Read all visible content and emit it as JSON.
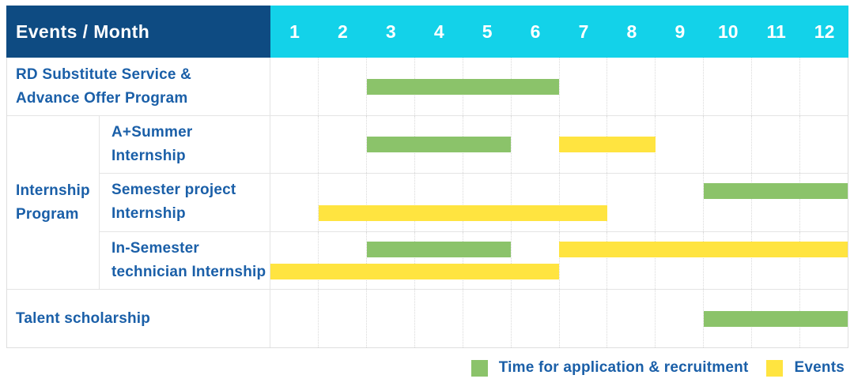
{
  "header": {
    "corner_label": "Events / Month",
    "months": [
      "1",
      "2",
      "3",
      "4",
      "5",
      "6",
      "7",
      "8",
      "9",
      "10",
      "11",
      "12"
    ]
  },
  "colors": {
    "navy": "#0e4b82",
    "cyan": "#13d2e9",
    "green": "#8bc36a",
    "yellow": "#ffe440",
    "text_blue": "#1a5fa8",
    "grid": "#e4e4e4",
    "grid_dotted": "#d9d9d9"
  },
  "group": {
    "id": "internship-program",
    "label_lines": [
      "Internship",
      "Program"
    ],
    "from_row": 1,
    "to_row": 3
  },
  "rows": [
    {
      "id": "rd-substitute",
      "label_lines": [
        "RD Substitute Service &",
        "Advance Offer Program"
      ],
      "in_group": false,
      "lines": [
        [
          {
            "color": "green",
            "start": 3,
            "end": 6
          }
        ]
      ]
    },
    {
      "id": "a-plus-summer-internship",
      "label_lines": [
        "A+Summer",
        "Internship"
      ],
      "in_group": true,
      "lines": [
        [
          {
            "color": "green",
            "start": 3,
            "end": 5
          },
          {
            "color": "yellow",
            "start": 7,
            "end": 8
          }
        ]
      ]
    },
    {
      "id": "semester-project-internship",
      "label_lines": [
        "Semester project",
        "Internship"
      ],
      "in_group": true,
      "lines": [
        [
          {
            "color": "green",
            "start": 10,
            "end": 12
          }
        ],
        [
          {
            "color": "yellow",
            "start": 2,
            "end": 7
          }
        ]
      ]
    },
    {
      "id": "in-semester-technician-internship",
      "label_lines": [
        "In-Semester",
        "technician Internship"
      ],
      "in_group": true,
      "lines": [
        [
          {
            "color": "green",
            "start": 3,
            "end": 5
          },
          {
            "color": "yellow",
            "start": 7,
            "end": 12
          }
        ],
        [
          {
            "color": "yellow",
            "start": 1,
            "end": 6
          }
        ]
      ]
    },
    {
      "id": "talent-scholarship",
      "label_lines": [
        "Talent scholarship"
      ],
      "in_group": false,
      "lines": [
        [
          {
            "color": "green",
            "start": 10,
            "end": 12
          }
        ]
      ]
    }
  ],
  "legend": {
    "items": [
      {
        "color": "green",
        "label": "Time for application & recruitment"
      },
      {
        "color": "yellow",
        "label": "Events"
      }
    ]
  },
  "chart_data": {
    "type": "table",
    "subtype": "gantt-timeline",
    "title": "Events / Month",
    "x_unit": "month",
    "x_ticks": [
      "1",
      "2",
      "3",
      "4",
      "5",
      "6",
      "7",
      "8",
      "9",
      "10",
      "11",
      "12"
    ],
    "x_range": [
      1,
      12
    ],
    "legend": {
      "green": "Time for application & recruitment",
      "yellow": "Events"
    },
    "rows": [
      {
        "group": null,
        "event": "RD Substitute Service & Advance Offer Program",
        "spans": [
          {
            "kind": "application_recruitment",
            "color": "green",
            "months": [
              3,
              6
            ]
          }
        ]
      },
      {
        "group": "Internship Program",
        "event": "A+Summer Internship",
        "spans": [
          {
            "kind": "application_recruitment",
            "color": "green",
            "months": [
              3,
              5
            ]
          },
          {
            "kind": "events",
            "color": "yellow",
            "months": [
              7,
              8
            ]
          }
        ]
      },
      {
        "group": "Internship Program",
        "event": "Semester project Internship",
        "spans": [
          {
            "kind": "application_recruitment",
            "color": "green",
            "months": [
              10,
              12
            ]
          },
          {
            "kind": "events",
            "color": "yellow",
            "months": [
              2,
              7
            ]
          }
        ]
      },
      {
        "group": "Internship Program",
        "event": "In-Semester technician Internship",
        "spans": [
          {
            "kind": "application_recruitment",
            "color": "green",
            "months": [
              3,
              5
            ]
          },
          {
            "kind": "events",
            "color": "yellow",
            "months": [
              7,
              12
            ]
          },
          {
            "kind": "events",
            "color": "yellow",
            "months": [
              1,
              6
            ]
          }
        ]
      },
      {
        "group": null,
        "event": "Talent scholarship",
        "spans": [
          {
            "kind": "application_recruitment",
            "color": "green",
            "months": [
              10,
              12
            ]
          }
        ]
      }
    ]
  }
}
